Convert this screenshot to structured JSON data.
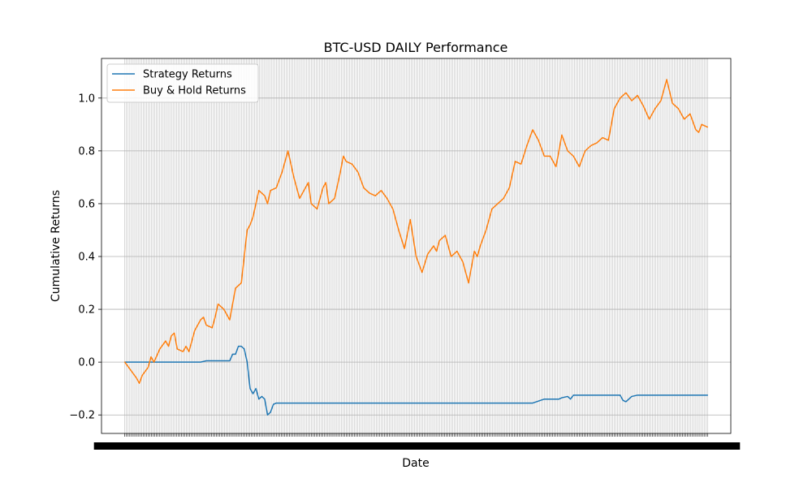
{
  "chart_data": {
    "type": "line",
    "title": "BTC-USD DAILY Performance",
    "xlabel": "Date",
    "ylabel": "Cumulative Returns",
    "ylim": [
      -0.27,
      1.15
    ],
    "xlim": [
      -0.04,
      1.04
    ],
    "y_ticks": [
      -0.2,
      0.0,
      0.2,
      0.4,
      0.6,
      0.8,
      1.0
    ],
    "y_tick_labels": [
      "−0.2",
      "0.0",
      "0.2",
      "0.4",
      "0.6",
      "0.8",
      "1.0"
    ],
    "grid": true,
    "grid_note": "dense vertical gridlines at every daily date tick; horizontal gridlines at y ticks",
    "x_tick_labels_overlapping": true,
    "legend_position": "upper-left",
    "colors": {
      "strategy": "#1f77b4",
      "buyhold": "#ff7f0e",
      "grid": "#b0b0b0"
    },
    "series": [
      {
        "name": "Strategy Returns",
        "color": "#1f77b4",
        "x": [
          0.0,
          0.13,
          0.14,
          0.18,
          0.185,
          0.19,
          0.195,
          0.2,
          0.205,
          0.21,
          0.215,
          0.22,
          0.225,
          0.23,
          0.235,
          0.24,
          0.245,
          0.25,
          0.255,
          0.26,
          0.7,
          0.72,
          0.74,
          0.745,
          0.75,
          0.76,
          0.765,
          0.77,
          0.78,
          0.85,
          0.855,
          0.86,
          0.865,
          0.87,
          0.88,
          1.0
        ],
        "y": [
          0.0,
          0.0,
          0.005,
          0.005,
          0.03,
          0.03,
          0.06,
          0.06,
          0.05,
          0.0,
          -0.1,
          -0.12,
          -0.1,
          -0.14,
          -0.13,
          -0.14,
          -0.2,
          -0.19,
          -0.16,
          -0.155,
          -0.155,
          -0.14,
          -0.14,
          -0.14,
          -0.135,
          -0.13,
          -0.14,
          -0.125,
          -0.125,
          -0.125,
          -0.145,
          -0.15,
          -0.14,
          -0.13,
          -0.125,
          -0.125
        ]
      },
      {
        "name": "Buy & Hold Returns",
        "color": "#ff7f0e",
        "x": [
          0.0,
          0.01,
          0.02,
          0.025,
          0.03,
          0.04,
          0.045,
          0.05,
          0.06,
          0.07,
          0.075,
          0.08,
          0.085,
          0.09,
          0.1,
          0.105,
          0.11,
          0.12,
          0.13,
          0.135,
          0.14,
          0.15,
          0.155,
          0.16,
          0.17,
          0.18,
          0.19,
          0.2,
          0.21,
          0.215,
          0.22,
          0.23,
          0.24,
          0.245,
          0.25,
          0.26,
          0.27,
          0.28,
          0.29,
          0.3,
          0.31,
          0.315,
          0.32,
          0.33,
          0.34,
          0.345,
          0.35,
          0.36,
          0.37,
          0.375,
          0.38,
          0.39,
          0.4,
          0.41,
          0.42,
          0.43,
          0.44,
          0.45,
          0.46,
          0.47,
          0.48,
          0.49,
          0.5,
          0.51,
          0.52,
          0.53,
          0.535,
          0.54,
          0.55,
          0.56,
          0.57,
          0.58,
          0.59,
          0.6,
          0.605,
          0.61,
          0.62,
          0.63,
          0.64,
          0.65,
          0.66,
          0.67,
          0.68,
          0.69,
          0.7,
          0.71,
          0.72,
          0.73,
          0.74,
          0.75,
          0.76,
          0.77,
          0.78,
          0.79,
          0.8,
          0.81,
          0.82,
          0.83,
          0.84,
          0.85,
          0.86,
          0.87,
          0.88,
          0.89,
          0.9,
          0.91,
          0.92,
          0.93,
          0.94,
          0.95,
          0.96,
          0.97,
          0.98,
          0.985,
          0.99,
          1.0
        ],
        "y": [
          0.0,
          -0.03,
          -0.06,
          -0.08,
          -0.05,
          -0.02,
          0.02,
          0.0,
          0.05,
          0.08,
          0.06,
          0.1,
          0.11,
          0.05,
          0.04,
          0.06,
          0.04,
          0.12,
          0.16,
          0.17,
          0.14,
          0.13,
          0.17,
          0.22,
          0.2,
          0.16,
          0.28,
          0.3,
          0.5,
          0.52,
          0.55,
          0.65,
          0.63,
          0.6,
          0.65,
          0.66,
          0.72,
          0.8,
          0.7,
          0.62,
          0.66,
          0.68,
          0.6,
          0.58,
          0.66,
          0.68,
          0.6,
          0.62,
          0.72,
          0.78,
          0.76,
          0.75,
          0.72,
          0.66,
          0.64,
          0.63,
          0.65,
          0.62,
          0.58,
          0.5,
          0.43,
          0.54,
          0.4,
          0.34,
          0.41,
          0.44,
          0.42,
          0.46,
          0.48,
          0.4,
          0.42,
          0.38,
          0.3,
          0.42,
          0.4,
          0.44,
          0.5,
          0.58,
          0.6,
          0.62,
          0.66,
          0.76,
          0.75,
          0.82,
          0.88,
          0.84,
          0.78,
          0.78,
          0.74,
          0.86,
          0.8,
          0.78,
          0.74,
          0.8,
          0.82,
          0.83,
          0.85,
          0.84,
          0.96,
          1.0,
          1.02,
          0.99,
          1.01,
          0.97,
          0.92,
          0.96,
          0.99,
          1.07,
          0.98,
          0.96,
          0.92,
          0.94,
          0.88,
          0.87,
          0.9,
          0.89
        ]
      }
    ]
  }
}
